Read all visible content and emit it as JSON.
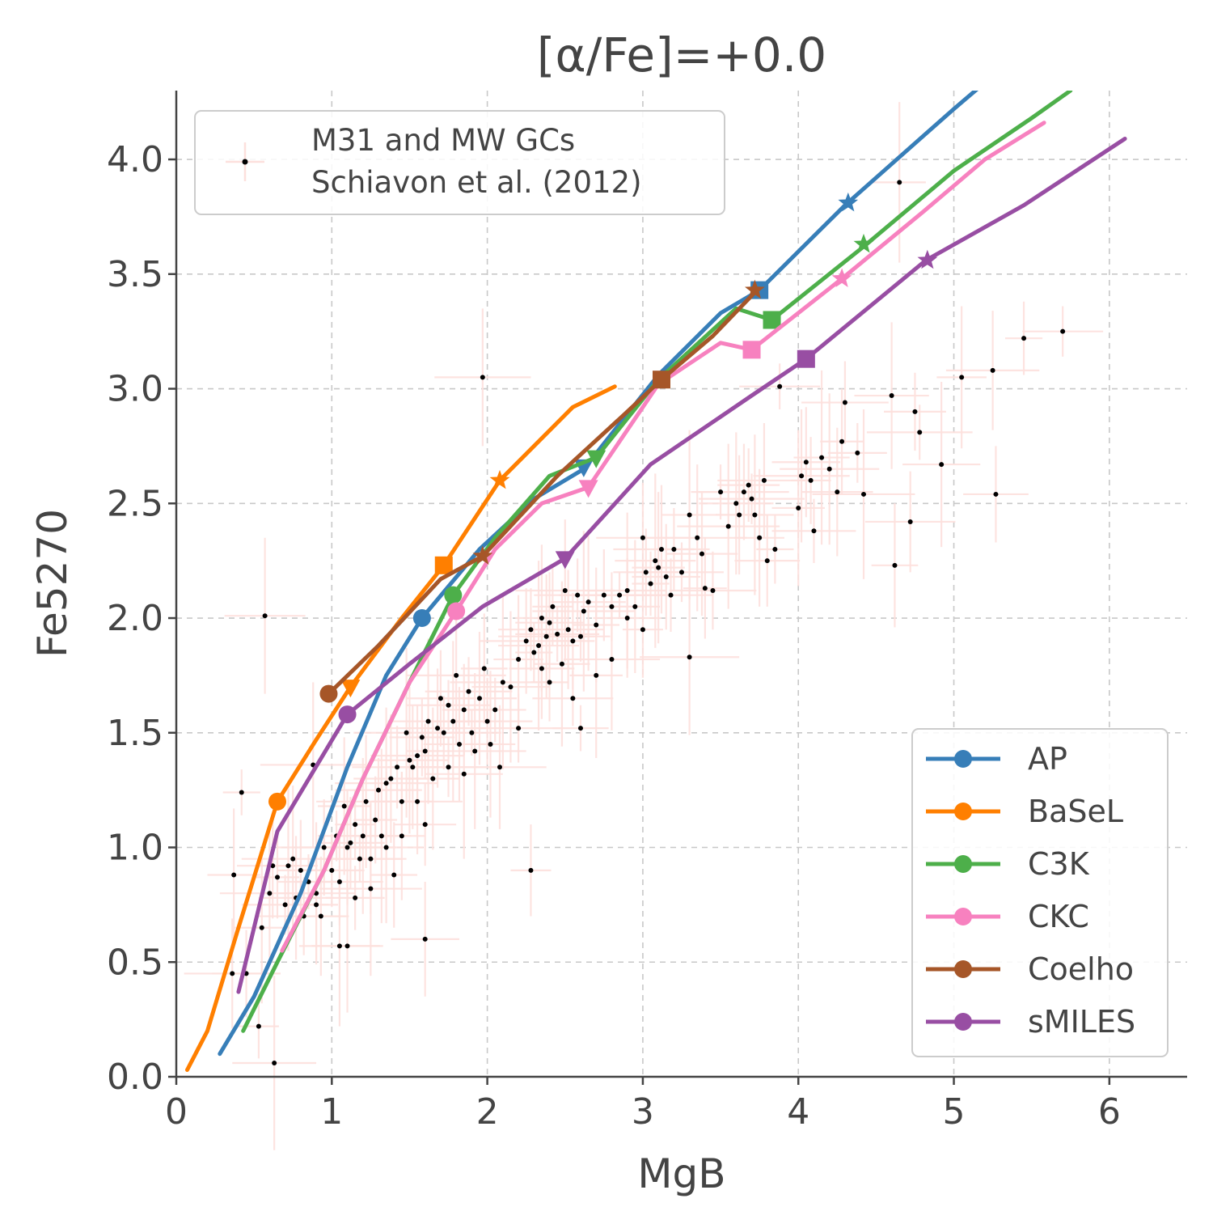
{
  "chart_data": {
    "type": "line",
    "title": "[α/Fe]=+0.0",
    "xlabel": "MgB",
    "ylabel": "Fe5270",
    "xlim": [
      0,
      6.5
    ],
    "ylim": [
      0,
      4.3
    ],
    "x_ticks": [
      0,
      1,
      2,
      3,
      4,
      5,
      6
    ],
    "x_tick_labels": [
      "0",
      "1",
      "2",
      "3",
      "4",
      "5",
      "6"
    ],
    "y_ticks": [
      0,
      0.5,
      1,
      1.5,
      2,
      2.5,
      3,
      3.5,
      4
    ],
    "y_tick_labels": [
      "0.0",
      "0.5",
      "1.0",
      "1.5",
      "2.0",
      "2.5",
      "3.0",
      "3.5",
      "4.0"
    ],
    "grid": true,
    "legend_position": "lower-right",
    "series": [
      {
        "name": "AP",
        "color": "#377eb8",
        "x": [
          0.28,
          0.5,
          0.8,
          1.1,
          1.35,
          1.58,
          1.95,
          2.3,
          2.62,
          3.1,
          3.5,
          3.75,
          4.3,
          5.0,
          5.45
        ],
        "y": [
          0.1,
          0.35,
          0.8,
          1.35,
          1.75,
          2.0,
          2.3,
          2.52,
          2.65,
          3.06,
          3.33,
          3.43,
          3.8,
          4.22,
          4.48
        ],
        "markers": [
          {
            "x": 1.58,
            "y": 2.0,
            "shape": "circle"
          },
          {
            "x": 2.62,
            "y": 2.66,
            "shape": "triangle-down"
          },
          {
            "x": 3.75,
            "y": 3.43,
            "shape": "square"
          },
          {
            "x": 4.32,
            "y": 3.81,
            "shape": "star"
          }
        ]
      },
      {
        "name": "BaSeL",
        "color": "#ff7f00",
        "x": [
          0.07,
          0.2,
          0.4,
          0.65,
          0.9,
          1.12,
          1.45,
          1.72,
          2.08,
          2.55,
          2.82
        ],
        "y": [
          0.03,
          0.2,
          0.65,
          1.2,
          1.47,
          1.7,
          2.0,
          2.23,
          2.6,
          2.92,
          3.01
        ],
        "markers": [
          {
            "x": 0.65,
            "y": 1.2,
            "shape": "circle"
          },
          {
            "x": 1.12,
            "y": 1.7,
            "shape": "triangle-down"
          },
          {
            "x": 1.72,
            "y": 2.23,
            "shape": "square"
          },
          {
            "x": 2.08,
            "y": 2.6,
            "shape": "star"
          }
        ]
      },
      {
        "name": "C3K",
        "color": "#4daf4a",
        "x": [
          0.43,
          0.65,
          0.95,
          1.2,
          1.5,
          1.78,
          2.05,
          2.4,
          2.7,
          3.1,
          3.6,
          3.83,
          4.42,
          5.0,
          5.5,
          5.75
        ],
        "y": [
          0.2,
          0.5,
          0.9,
          1.3,
          1.72,
          2.1,
          2.35,
          2.62,
          2.7,
          3.04,
          3.35,
          3.3,
          3.62,
          3.95,
          4.18,
          4.3
        ],
        "markers": [
          {
            "x": 1.78,
            "y": 2.1,
            "shape": "circle"
          },
          {
            "x": 2.7,
            "y": 2.7,
            "shape": "triangle-down"
          },
          {
            "x": 3.83,
            "y": 3.3,
            "shape": "square"
          },
          {
            "x": 4.42,
            "y": 3.63,
            "shape": "star"
          }
        ]
      },
      {
        "name": "CKC",
        "color": "#f781bf",
        "x": [
          0.68,
          0.95,
          1.2,
          1.5,
          1.8,
          2.05,
          2.35,
          2.65,
          3.1,
          3.5,
          3.7,
          4.28,
          4.8,
          5.2,
          5.58
        ],
        "y": [
          0.55,
          0.9,
          1.3,
          1.72,
          2.03,
          2.3,
          2.5,
          2.57,
          3.02,
          3.2,
          3.17,
          3.48,
          3.77,
          4.0,
          4.16
        ],
        "markers": [
          {
            "x": 1.8,
            "y": 2.03,
            "shape": "circle"
          },
          {
            "x": 2.65,
            "y": 2.57,
            "shape": "triangle-down"
          },
          {
            "x": 3.7,
            "y": 3.17,
            "shape": "square"
          },
          {
            "x": 4.28,
            "y": 3.48,
            "shape": "star"
          }
        ]
      },
      {
        "name": "Coelho",
        "color": "#a65628",
        "x": [
          0.98,
          1.3,
          1.7,
          1.97,
          2.45,
          2.9,
          3.12,
          3.45,
          3.72
        ],
        "y": [
          1.67,
          1.88,
          2.17,
          2.27,
          2.62,
          2.9,
          3.04,
          3.23,
          3.42
        ],
        "markers": [
          {
            "x": 0.98,
            "y": 1.67,
            "shape": "circle"
          },
          {
            "x": 1.97,
            "y": 2.27,
            "shape": "star"
          },
          {
            "x": 3.12,
            "y": 3.04,
            "shape": "square"
          },
          {
            "x": 3.72,
            "y": 3.43,
            "shape": "star"
          }
        ]
      },
      {
        "name": "sMILES",
        "color": "#984ea3",
        "x": [
          0.4,
          0.65,
          1.1,
          1.5,
          1.97,
          2.5,
          3.05,
          3.7,
          4.05,
          4.82,
          5.45,
          6.1
        ],
        "y": [
          0.37,
          1.07,
          1.58,
          1.8,
          2.05,
          2.26,
          2.67,
          2.97,
          3.13,
          3.56,
          3.8,
          4.09
        ],
        "markers": [
          {
            "x": 1.1,
            "y": 1.58,
            "shape": "circle"
          },
          {
            "x": 2.5,
            "y": 2.26,
            "shape": "triangle-down"
          },
          {
            "x": 4.05,
            "y": 3.13,
            "shape": "square"
          },
          {
            "x": 4.83,
            "y": 3.56,
            "shape": "star"
          }
        ]
      }
    ],
    "observed": {
      "name": "M31 and MW GCs\nSchiavon et al. (2012)",
      "name_lines": [
        "M31 and MW GCs",
        "Schiavon et al. (2012)"
      ],
      "marker_color": "#000000",
      "errorbar_color": "#fde0dd",
      "points": [
        [
          0.42,
          1.24
        ],
        [
          0.57,
          2.01
        ],
        [
          0.37,
          0.88
        ],
        [
          0.36,
          0.45
        ],
        [
          0.45,
          0.45
        ],
        [
          0.53,
          0.22
        ],
        [
          0.63,
          0.06
        ],
        [
          0.55,
          0.65
        ],
        [
          0.6,
          0.8
        ],
        [
          0.62,
          0.92
        ],
        [
          0.65,
          0.87
        ],
        [
          0.7,
          0.75
        ],
        [
          0.72,
          0.92
        ],
        [
          0.75,
          0.95
        ],
        [
          0.77,
          0.78
        ],
        [
          0.8,
          0.9
        ],
        [
          0.82,
          0.7
        ],
        [
          0.85,
          0.85
        ],
        [
          0.88,
          1.36
        ],
        [
          0.9,
          0.8
        ],
        [
          0.93,
          0.7
        ],
        [
          0.95,
          1.0
        ],
        [
          1.0,
          0.9
        ],
        [
          1.03,
          1.05
        ],
        [
          1.05,
          0.57
        ],
        [
          1.08,
          1.18
        ],
        [
          1.1,
          1.0
        ],
        [
          1.12,
          1.02
        ],
        [
          1.15,
          1.1
        ],
        [
          1.18,
          0.95
        ],
        [
          1.2,
          1.05
        ],
        [
          1.22,
          1.2
        ],
        [
          1.25,
          0.95
        ],
        [
          1.28,
          1.12
        ],
        [
          1.3,
          1.25
        ],
        [
          1.32,
          1.05
        ],
        [
          1.35,
          1.28
        ],
        [
          1.38,
          1.3
        ],
        [
          1.4,
          0.88
        ],
        [
          1.42,
          1.35
        ],
        [
          1.45,
          1.2
        ],
        [
          1.48,
          1.5
        ],
        [
          1.5,
          1.38
        ],
        [
          1.52,
          1.35
        ],
        [
          1.55,
          1.4
        ],
        [
          1.58,
          1.48
        ],
        [
          1.6,
          1.42
        ],
        [
          1.62,
          1.55
        ],
        [
          1.65,
          1.3
        ],
        [
          1.68,
          1.52
        ],
        [
          1.7,
          1.65
        ],
        [
          1.72,
          1.5
        ],
        [
          1.75,
          1.62
        ],
        [
          1.78,
          1.55
        ],
        [
          1.8,
          1.75
        ],
        [
          1.82,
          1.45
        ],
        [
          1.85,
          1.6
        ],
        [
          1.88,
          1.68
        ],
        [
          1.9,
          1.5
        ],
        [
          1.92,
          1.42
        ],
        [
          1.95,
          1.65
        ],
        [
          1.98,
          1.78
        ],
        [
          2.0,
          1.55
        ],
        [
          2.05,
          1.6
        ],
        [
          2.1,
          1.72
        ],
        [
          2.15,
          1.7
        ],
        [
          2.2,
          1.82
        ],
        [
          2.25,
          1.9
        ],
        [
          2.28,
          1.95
        ],
        [
          2.3,
          1.85
        ],
        [
          2.33,
          1.88
        ],
        [
          2.35,
          2.0
        ],
        [
          2.38,
          1.92
        ],
        [
          2.4,
          1.98
        ],
        [
          2.42,
          2.05
        ],
        [
          2.45,
          1.93
        ],
        [
          2.48,
          1.8
        ],
        [
          2.5,
          2.12
        ],
        [
          2.52,
          1.95
        ],
        [
          2.55,
          1.9
        ],
        [
          2.58,
          2.1
        ],
        [
          2.6,
          1.92
        ],
        [
          2.62,
          2.03
        ],
        [
          2.65,
          2.07
        ],
        [
          2.7,
          1.97
        ],
        [
          2.75,
          2.1
        ],
        [
          2.8,
          2.05
        ],
        [
          2.85,
          2.1
        ],
        [
          2.9,
          2.12
        ],
        [
          2.95,
          2.05
        ],
        [
          3.0,
          2.35
        ],
        [
          3.02,
          2.2
        ],
        [
          3.05,
          2.15
        ],
        [
          3.08,
          2.25
        ],
        [
          3.1,
          2.22
        ],
        [
          3.12,
          2.3
        ],
        [
          3.15,
          2.18
        ],
        [
          3.2,
          2.3
        ],
        [
          3.25,
          2.2
        ],
        [
          3.3,
          2.45
        ],
        [
          3.35,
          2.35
        ],
        [
          3.38,
          2.28
        ],
        [
          3.4,
          2.13
        ],
        [
          3.45,
          2.12
        ],
        [
          3.5,
          2.55
        ],
        [
          3.55,
          2.4
        ],
        [
          3.6,
          2.5
        ],
        [
          3.62,
          2.45
        ],
        [
          3.65,
          2.55
        ],
        [
          3.68,
          2.58
        ],
        [
          3.7,
          2.52
        ],
        [
          3.72,
          2.45
        ],
        [
          3.75,
          2.35
        ],
        [
          3.78,
          2.6
        ],
        [
          3.8,
          2.25
        ],
        [
          3.85,
          2.3
        ],
        [
          3.88,
          3.01
        ],
        [
          4.0,
          2.48
        ],
        [
          4.02,
          2.62
        ],
        [
          4.05,
          2.68
        ],
        [
          4.08,
          2.6
        ],
        [
          4.1,
          2.38
        ],
        [
          4.15,
          2.7
        ],
        [
          4.2,
          2.65
        ],
        [
          4.25,
          2.55
        ],
        [
          4.28,
          2.77
        ],
        [
          4.3,
          2.94
        ],
        [
          4.38,
          2.72
        ],
        [
          4.42,
          2.54
        ],
        [
          4.6,
          2.97
        ],
        [
          4.62,
          2.23
        ],
        [
          4.72,
          2.42
        ],
        [
          4.75,
          2.9
        ],
        [
          4.78,
          2.81
        ],
        [
          4.92,
          2.67
        ],
        [
          5.05,
          3.05
        ],
        [
          5.25,
          3.08
        ],
        [
          5.27,
          2.54
        ],
        [
          5.45,
          3.22
        ],
        [
          5.7,
          3.25
        ],
        [
          4.65,
          3.9
        ],
        [
          1.97,
          3.05
        ],
        [
          1.6,
          0.6
        ],
        [
          2.28,
          0.9
        ],
        [
          2.2,
          1.52
        ],
        [
          2.6,
          1.52
        ],
        [
          3.3,
          1.83
        ],
        [
          1.1,
          0.57
        ],
        [
          0.9,
          0.75
        ],
        [
          1.05,
          0.85
        ],
        [
          1.15,
          0.78
        ],
        [
          1.25,
          0.82
        ],
        [
          1.35,
          1.0
        ],
        [
          1.45,
          1.05
        ],
        [
          1.55,
          1.2
        ],
        [
          1.6,
          1.1
        ],
        [
          1.75,
          1.35
        ],
        [
          1.85,
          1.32
        ],
        [
          2.02,
          1.45
        ],
        [
          2.08,
          1.35
        ],
        [
          2.35,
          1.78
        ],
        [
          2.4,
          1.72
        ],
        [
          2.55,
          1.65
        ],
        [
          2.7,
          1.75
        ],
        [
          2.8,
          1.82
        ],
        [
          2.9,
          2.0
        ],
        [
          3.0,
          1.95
        ],
        [
          3.18,
          2.1
        ]
      ]
    }
  }
}
